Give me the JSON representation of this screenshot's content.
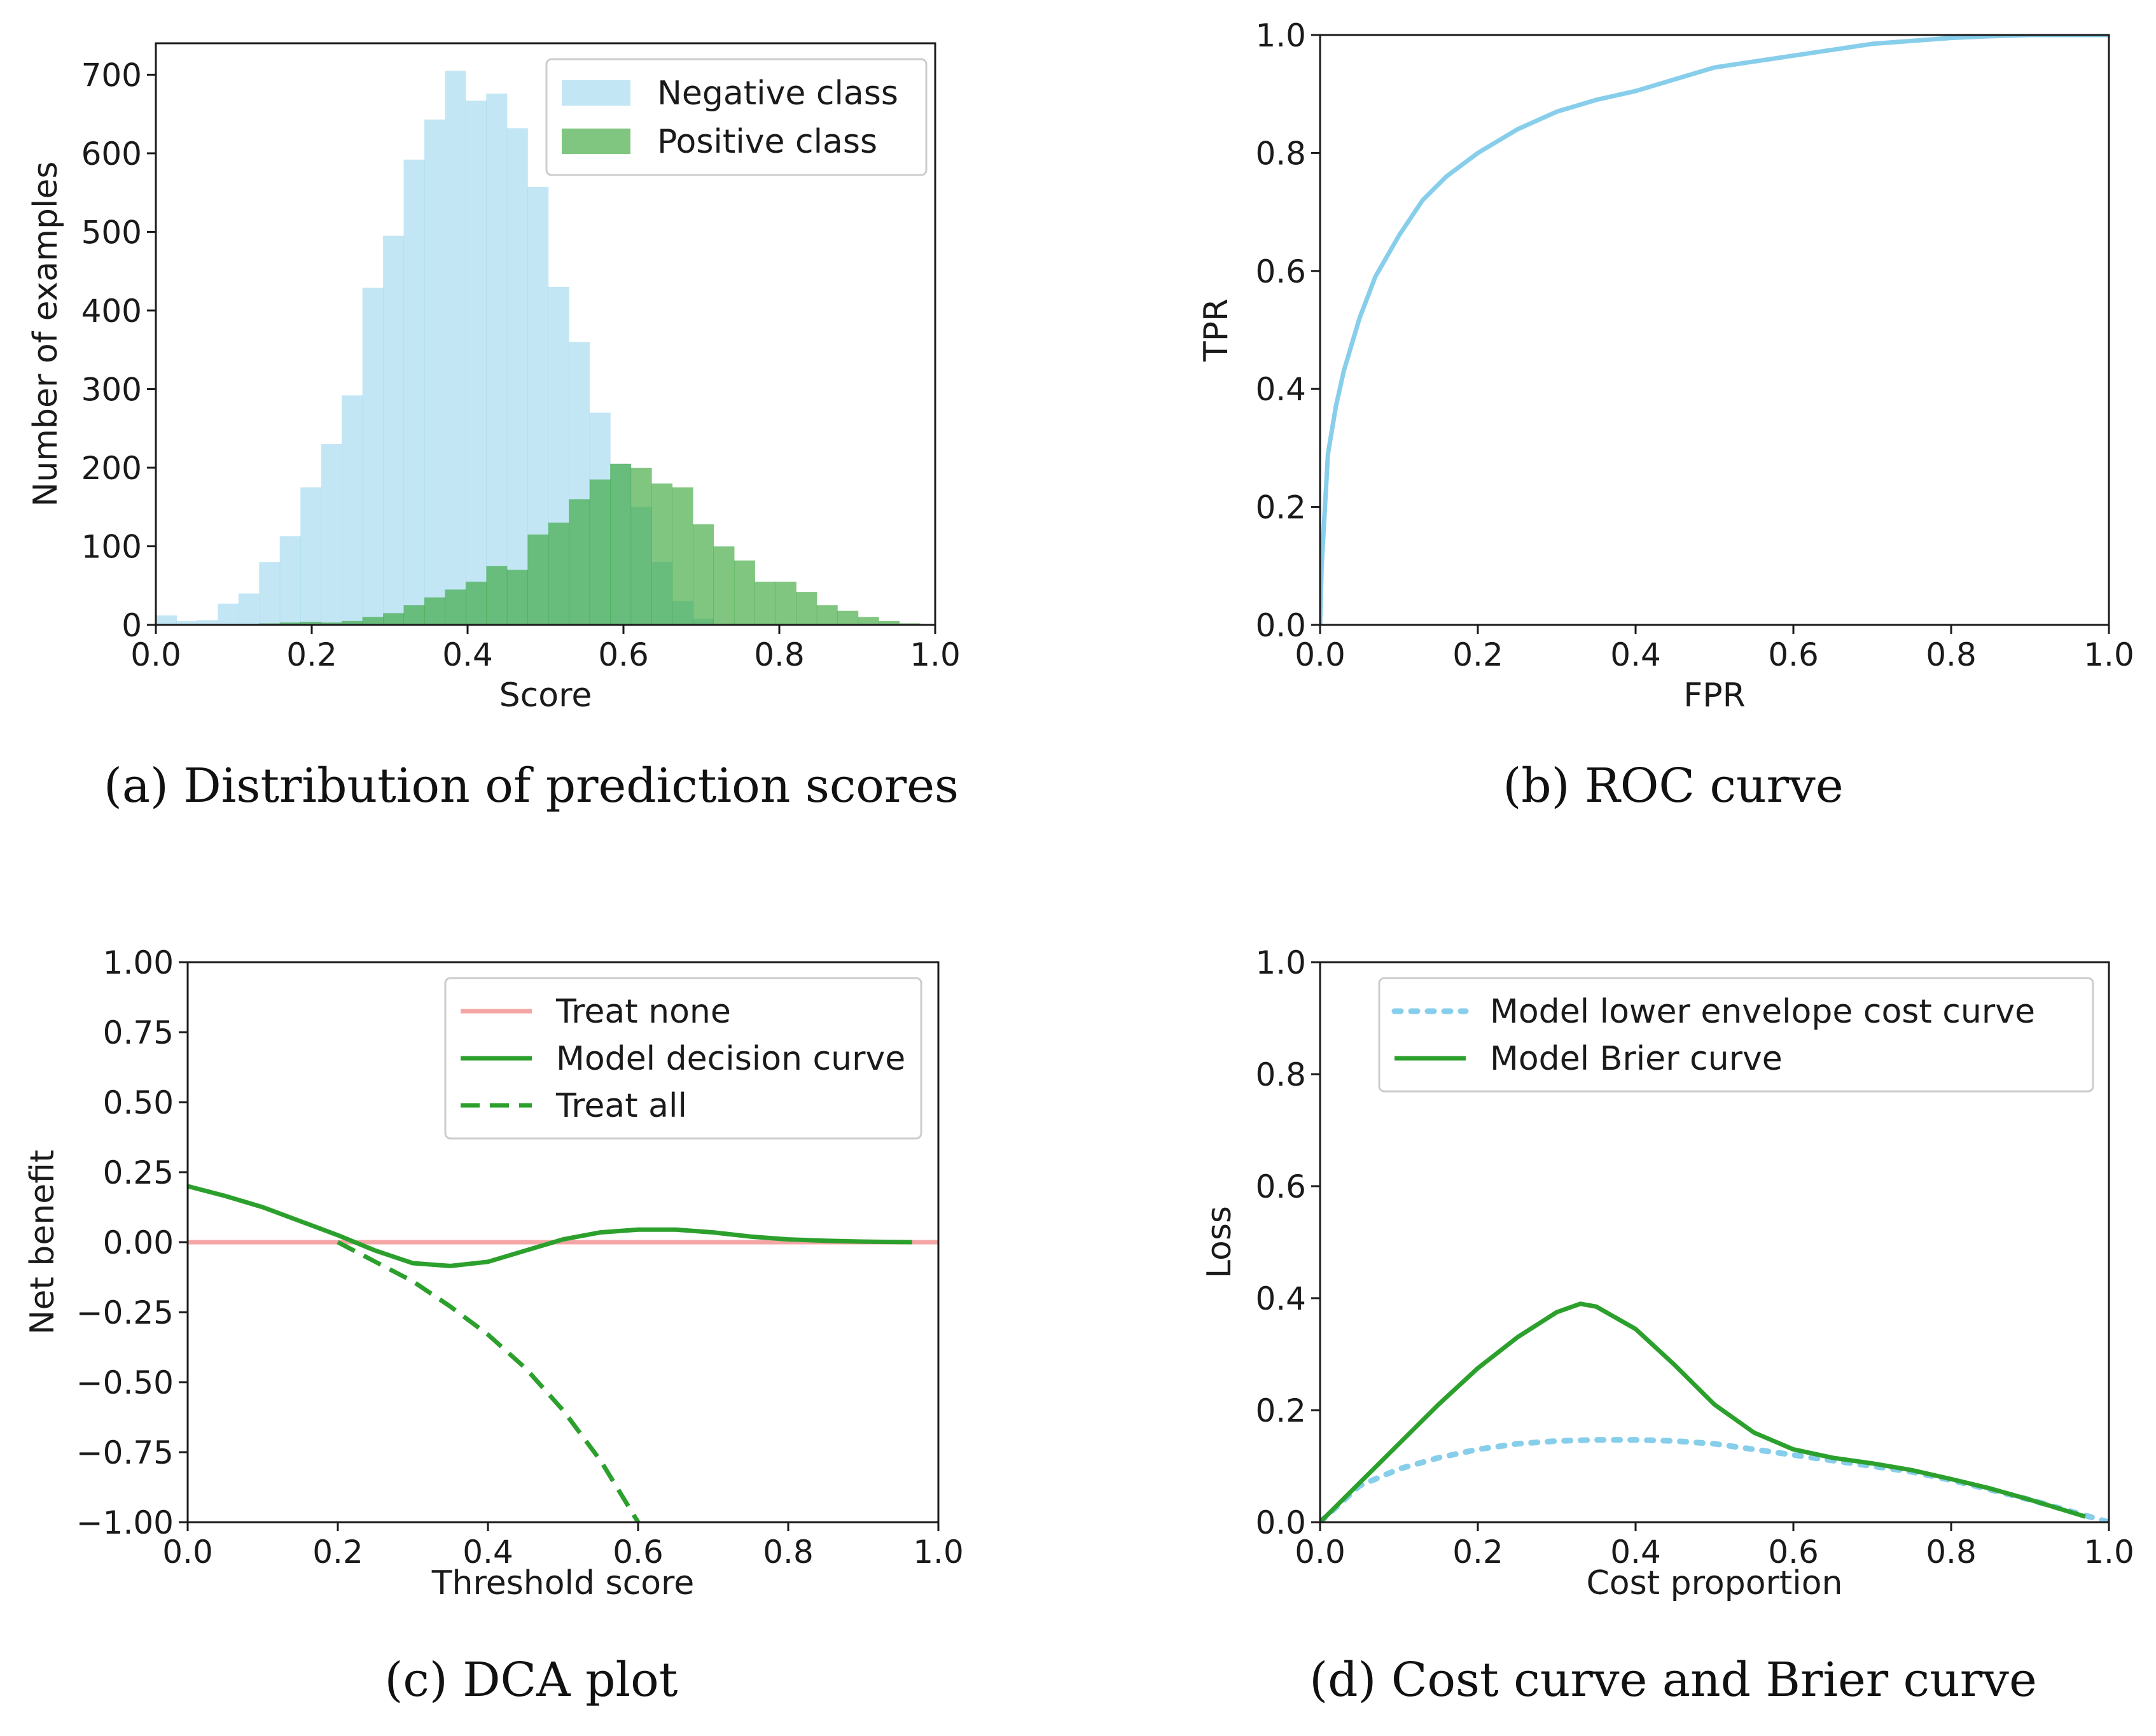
{
  "colors": {
    "negative": "#87ceeb",
    "positive": "#2ca02c",
    "treat_none": "#f4a6a6",
    "model": "#2ca02c",
    "cost_curve": "#87ceeb"
  },
  "chart_data": [
    {
      "id": "a",
      "type": "bar",
      "caption": "(a) Distribution of prediction scores",
      "title": "",
      "xlabel": "Score",
      "ylabel": "Number of examples",
      "xlim": [
        0,
        1
      ],
      "ylim": [
        0,
        740
      ],
      "xticks": [
        0,
        0.2,
        0.4,
        0.6,
        0.8,
        1.0
      ],
      "xtick_labels": [
        "0.0",
        "0.2",
        "0.4",
        "0.6",
        "0.8",
        "1.0"
      ],
      "yticks": [
        0,
        100,
        200,
        300,
        400,
        500,
        600,
        700
      ],
      "ytick_labels": [
        "0",
        "100",
        "200",
        "300",
        "400",
        "500",
        "600",
        "700"
      ],
      "legend_position": "top-right",
      "series": [
        {
          "name": "Negative class",
          "color": "#87ceeb",
          "opacity": 0.5,
          "bin_starts": [
            0.0,
            0.0265,
            0.053,
            0.0795,
            0.106,
            0.1325,
            0.159,
            0.1855,
            0.212,
            0.2385,
            0.265,
            0.2915,
            0.318,
            0.3445,
            0.371,
            0.3975,
            0.424,
            0.4505,
            0.477,
            0.5035,
            0.53,
            0.5565,
            0.583,
            0.6095,
            0.636,
            0.6625,
            0.689
          ],
          "bin_width": 0.0265,
          "values": [
            12,
            5,
            6,
            27,
            40,
            80,
            113,
            175,
            230,
            292,
            429,
            495,
            592,
            643,
            705,
            667,
            676,
            632,
            557,
            430,
            360,
            270,
            205,
            150,
            80,
            30,
            8
          ]
        },
        {
          "name": "Positive class",
          "color": "#2ca02c",
          "opacity": 0.6,
          "bin_starts": [
            0.1325,
            0.159,
            0.1855,
            0.212,
            0.2385,
            0.265,
            0.2915,
            0.318,
            0.3445,
            0.371,
            0.3975,
            0.424,
            0.4505,
            0.477,
            0.5035,
            0.53,
            0.5565,
            0.583,
            0.6095,
            0.636,
            0.6625,
            0.689,
            0.7155,
            0.742,
            0.7685,
            0.795,
            0.8215,
            0.848,
            0.8745,
            0.901,
            0.9275,
            0.954
          ],
          "bin_width": 0.0265,
          "values": [
            2,
            3,
            4,
            3,
            5,
            10,
            15,
            25,
            35,
            45,
            55,
            75,
            70,
            115,
            130,
            160,
            185,
            205,
            200,
            180,
            175,
            128,
            100,
            82,
            55,
            55,
            42,
            25,
            18,
            10,
            5,
            2
          ]
        }
      ]
    },
    {
      "id": "b",
      "type": "line",
      "caption": "(b) ROC curve",
      "title": "",
      "xlabel": "FPR",
      "ylabel": "TPR",
      "xlim": [
        0,
        1
      ],
      "ylim": [
        0,
        1
      ],
      "xticks": [
        0,
        0.2,
        0.4,
        0.6,
        0.8,
        1.0
      ],
      "xtick_labels": [
        "0.0",
        "0.2",
        "0.4",
        "0.6",
        "0.8",
        "1.0"
      ],
      "yticks": [
        0,
        0.2,
        0.4,
        0.6,
        0.8,
        1.0
      ],
      "ytick_labels": [
        "0.0",
        "0.2",
        "0.4",
        "0.6",
        "0.8",
        "1.0"
      ],
      "series": [
        {
          "color": "#87ceeb",
          "style": "solid",
          "x": [
            0,
            0.002,
            0.01,
            0.02,
            0.03,
            0.05,
            0.07,
            0.1,
            0.13,
            0.16,
            0.2,
            0.25,
            0.3,
            0.35,
            0.4,
            0.45,
            0.5,
            0.55,
            0.6,
            0.65,
            0.7,
            0.75,
            0.8,
            0.85,
            0.9,
            0.95,
            1.0
          ],
          "y": [
            0,
            0.1,
            0.29,
            0.37,
            0.43,
            0.52,
            0.59,
            0.66,
            0.72,
            0.76,
            0.8,
            0.84,
            0.87,
            0.89,
            0.905,
            0.925,
            0.945,
            0.955,
            0.965,
            0.975,
            0.985,
            0.99,
            0.995,
            0.998,
            1.0,
            1.0,
            1.0
          ]
        }
      ]
    },
    {
      "id": "c",
      "type": "line",
      "caption": "(c) DCA plot",
      "title": "",
      "xlabel": "Threshold score",
      "ylabel": "Net benefit",
      "xlim": [
        0,
        1
      ],
      "ylim": [
        -1,
        1
      ],
      "xticks": [
        0,
        0.2,
        0.4,
        0.6,
        0.8,
        1.0
      ],
      "xtick_labels": [
        "0.0",
        "0.2",
        "0.4",
        "0.6",
        "0.8",
        "1.0"
      ],
      "yticks": [
        -1,
        -0.75,
        -0.5,
        -0.25,
        0,
        0.25,
        0.5,
        0.75,
        1.0
      ],
      "ytick_labels": [
        "−1.00",
        "−0.75",
        "−0.50",
        "−0.25",
        "0.00",
        "0.25",
        "0.50",
        "0.75",
        "1.00"
      ],
      "legend_position": "top-right",
      "series": [
        {
          "name": "Treat none",
          "color": "#f4a6a6",
          "style": "solid",
          "x": [
            0,
            1
          ],
          "y": [
            0,
            0
          ]
        },
        {
          "name": "Model decision curve",
          "color": "#2ca02c",
          "style": "solid",
          "x": [
            0,
            0.05,
            0.1,
            0.15,
            0.2,
            0.25,
            0.3,
            0.35,
            0.4,
            0.45,
            0.5,
            0.55,
            0.6,
            0.65,
            0.7,
            0.75,
            0.8,
            0.85,
            0.9,
            0.965
          ],
          "y": [
            0.2,
            0.165,
            0.125,
            0.075,
            0.025,
            -0.03,
            -0.075,
            -0.085,
            -0.07,
            -0.03,
            0.01,
            0.035,
            0.045,
            0.045,
            0.035,
            0.02,
            0.01,
            0.005,
            0.002,
            0.0
          ]
        },
        {
          "name": "Treat all",
          "color": "#2ca02c",
          "style": "dashed",
          "x": [
            0.2,
            0.25,
            0.3,
            0.35,
            0.4,
            0.45,
            0.5,
            0.55,
            0.6
          ],
          "y": [
            0.0,
            -0.07,
            -0.14,
            -0.23,
            -0.33,
            -0.45,
            -0.6,
            -0.78,
            -1.0
          ]
        }
      ]
    },
    {
      "id": "d",
      "type": "line",
      "caption": "(d) Cost curve and Brier curve",
      "title": "",
      "xlabel": "Cost proportion",
      "ylabel": "Loss",
      "xlim": [
        0,
        1
      ],
      "ylim": [
        0,
        1
      ],
      "xticks": [
        0,
        0.2,
        0.4,
        0.6,
        0.8,
        1.0
      ],
      "xtick_labels": [
        "0.0",
        "0.2",
        "0.4",
        "0.6",
        "0.8",
        "1.0"
      ],
      "yticks": [
        0,
        0.2,
        0.4,
        0.6,
        0.8,
        1.0
      ],
      "ytick_labels": [
        "0.0",
        "0.2",
        "0.4",
        "0.6",
        "0.8",
        "1.0"
      ],
      "legend_position": "top-right",
      "series": [
        {
          "name": "Model lower envelope cost curve",
          "color": "#87ceeb",
          "style": "dotted",
          "x": [
            0,
            0.05,
            0.1,
            0.15,
            0.2,
            0.25,
            0.3,
            0.35,
            0.4,
            0.45,
            0.5,
            0.55,
            0.6,
            0.65,
            0.7,
            0.75,
            0.8,
            0.85,
            0.9,
            0.95,
            1.0
          ],
          "y": [
            0,
            0.065,
            0.095,
            0.115,
            0.13,
            0.14,
            0.145,
            0.147,
            0.147,
            0.145,
            0.14,
            0.13,
            0.12,
            0.11,
            0.1,
            0.09,
            0.075,
            0.058,
            0.04,
            0.02,
            0.0
          ]
        },
        {
          "name": "Model Brier curve",
          "color": "#2ca02c",
          "style": "solid",
          "x": [
            0,
            0.05,
            0.1,
            0.15,
            0.2,
            0.25,
            0.3,
            0.33,
            0.35,
            0.4,
            0.45,
            0.5,
            0.55,
            0.6,
            0.65,
            0.7,
            0.75,
            0.8,
            0.85,
            0.9,
            0.97
          ],
          "y": [
            0,
            0.07,
            0.14,
            0.21,
            0.275,
            0.33,
            0.375,
            0.39,
            0.385,
            0.345,
            0.28,
            0.21,
            0.16,
            0.13,
            0.115,
            0.105,
            0.093,
            0.077,
            0.06,
            0.04,
            0.01
          ]
        }
      ]
    }
  ]
}
